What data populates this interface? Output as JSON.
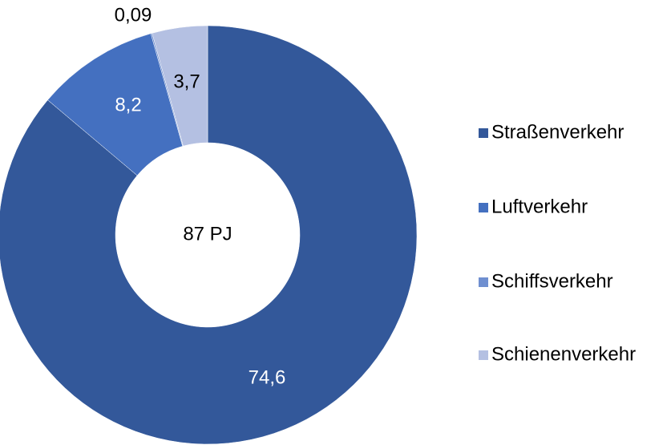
{
  "chart_data": {
    "type": "donut",
    "categories": [
      "Straßenverkehr",
      "Luftverkehr",
      "Schiffsverkehr",
      "Schienenverkehr"
    ],
    "values": [
      74.6,
      8.2,
      0.09,
      3.7
    ],
    "value_labels": [
      "74,6",
      "8,2",
      "0,09",
      "3,7"
    ],
    "colors": [
      "#33589a",
      "#4470c0",
      "#6f8fd0",
      "#b4c0e2"
    ],
    "center_label": "87 PJ",
    "legend": "right"
  }
}
